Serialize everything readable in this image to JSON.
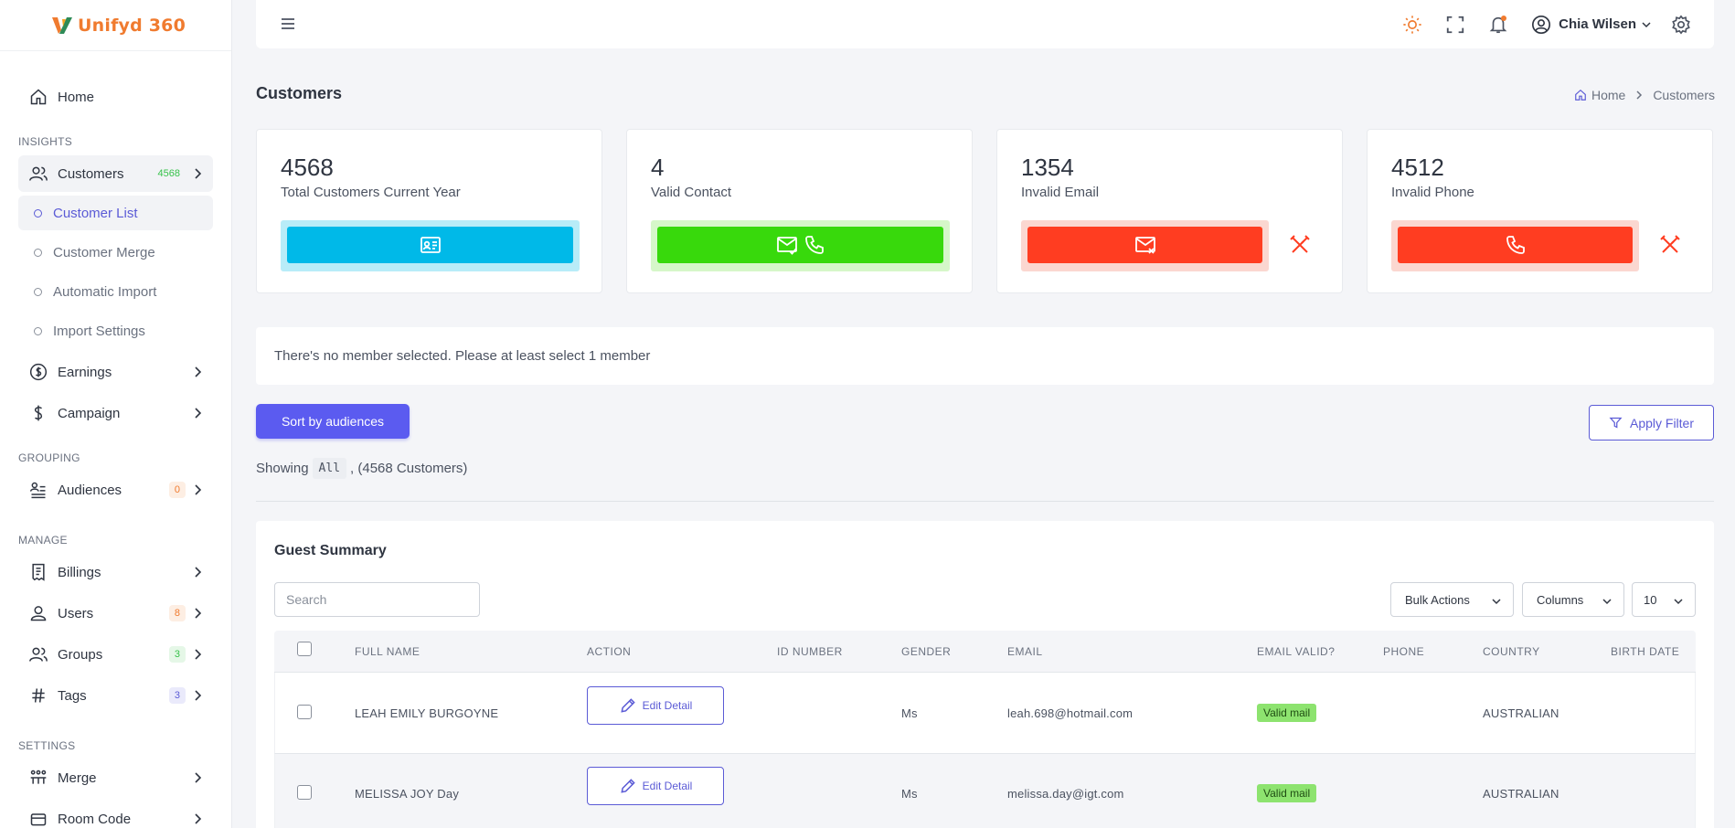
{
  "brand": {
    "name": "Unifyd 360"
  },
  "sidebar": {
    "home": "Home",
    "sections": {
      "insights": "INSIGHTS",
      "grouping": "GROUPING",
      "manage": "MANAGE",
      "settings": "SETTINGS"
    },
    "customers": {
      "label": "Customers",
      "badge": "4568"
    },
    "sub": [
      "Customer List",
      "Customer Merge",
      "Automatic Import",
      "Import Settings"
    ],
    "earnings": "Earnings",
    "campaign": "Campaign",
    "audiences": {
      "label": "Audiences",
      "badge": "0"
    },
    "billings": "Billings",
    "users": {
      "label": "Users",
      "badge": "8"
    },
    "groups": {
      "label": "Groups",
      "badge": "3"
    },
    "tags": {
      "label": "Tags",
      "badge": "3"
    },
    "merge": "Merge",
    "room_code": "Room Code"
  },
  "topbar": {
    "user_name": "Chia Wilsen",
    "icons": [
      "sun-icon",
      "fullscreen-icon",
      "bell-icon",
      "user-circle-icon",
      "gear-icon"
    ]
  },
  "page": {
    "title": "Customers",
    "breadcrumb": [
      "Home",
      "Customers"
    ]
  },
  "stats": [
    {
      "value": "4568",
      "label": "Total Customers Current Year",
      "color": "#00b9e8",
      "bg": "#b8ecf8"
    },
    {
      "value": "4",
      "label": "Valid Contact",
      "color": "#38d90c",
      "bg": "#d6f7c9"
    },
    {
      "value": "1354",
      "label": "Invalid Email",
      "color": "#ff3d21",
      "bg": "#fbd7d0"
    },
    {
      "value": "4512",
      "label": "Invalid Phone",
      "color": "#ff3d21",
      "bg": "#fbd7d0"
    }
  ],
  "notice": "There's no member selected. Please at least select 1 member",
  "actions": {
    "sort": "Sort by audiences",
    "filter": "Apply Filter"
  },
  "showing": {
    "prefix": "Showing",
    "code": "All",
    "suffix": ", (4568 Customers)"
  },
  "table": {
    "title": "Guest Summary",
    "search_placeholder": "Search",
    "bulk": "Bulk Actions",
    "columns": "Columns",
    "page_size": "10",
    "headers": [
      "FULL NAME",
      "ACTION",
      "ID NUMBER",
      "GENDER",
      "EMAIL",
      "EMAIL VALID?",
      "PHONE",
      "COUNTRY",
      "BIRTH DATE"
    ],
    "edit_label": "Edit Detail",
    "rows": [
      {
        "name": "LEAH EMILY BURGOYNE",
        "id": "",
        "gender": "Ms",
        "email": "leah.698@hotmail.com",
        "valid": "Valid mail",
        "phone": "",
        "country": "AUSTRALIAN",
        "birth": ""
      },
      {
        "name": "MELISSA JOY Day",
        "id": "",
        "gender": "Ms",
        "email": "melissa.day@igt.com",
        "valid": "Valid mail",
        "phone": "",
        "country": "AUSTRALIAN",
        "birth": ""
      }
    ]
  }
}
